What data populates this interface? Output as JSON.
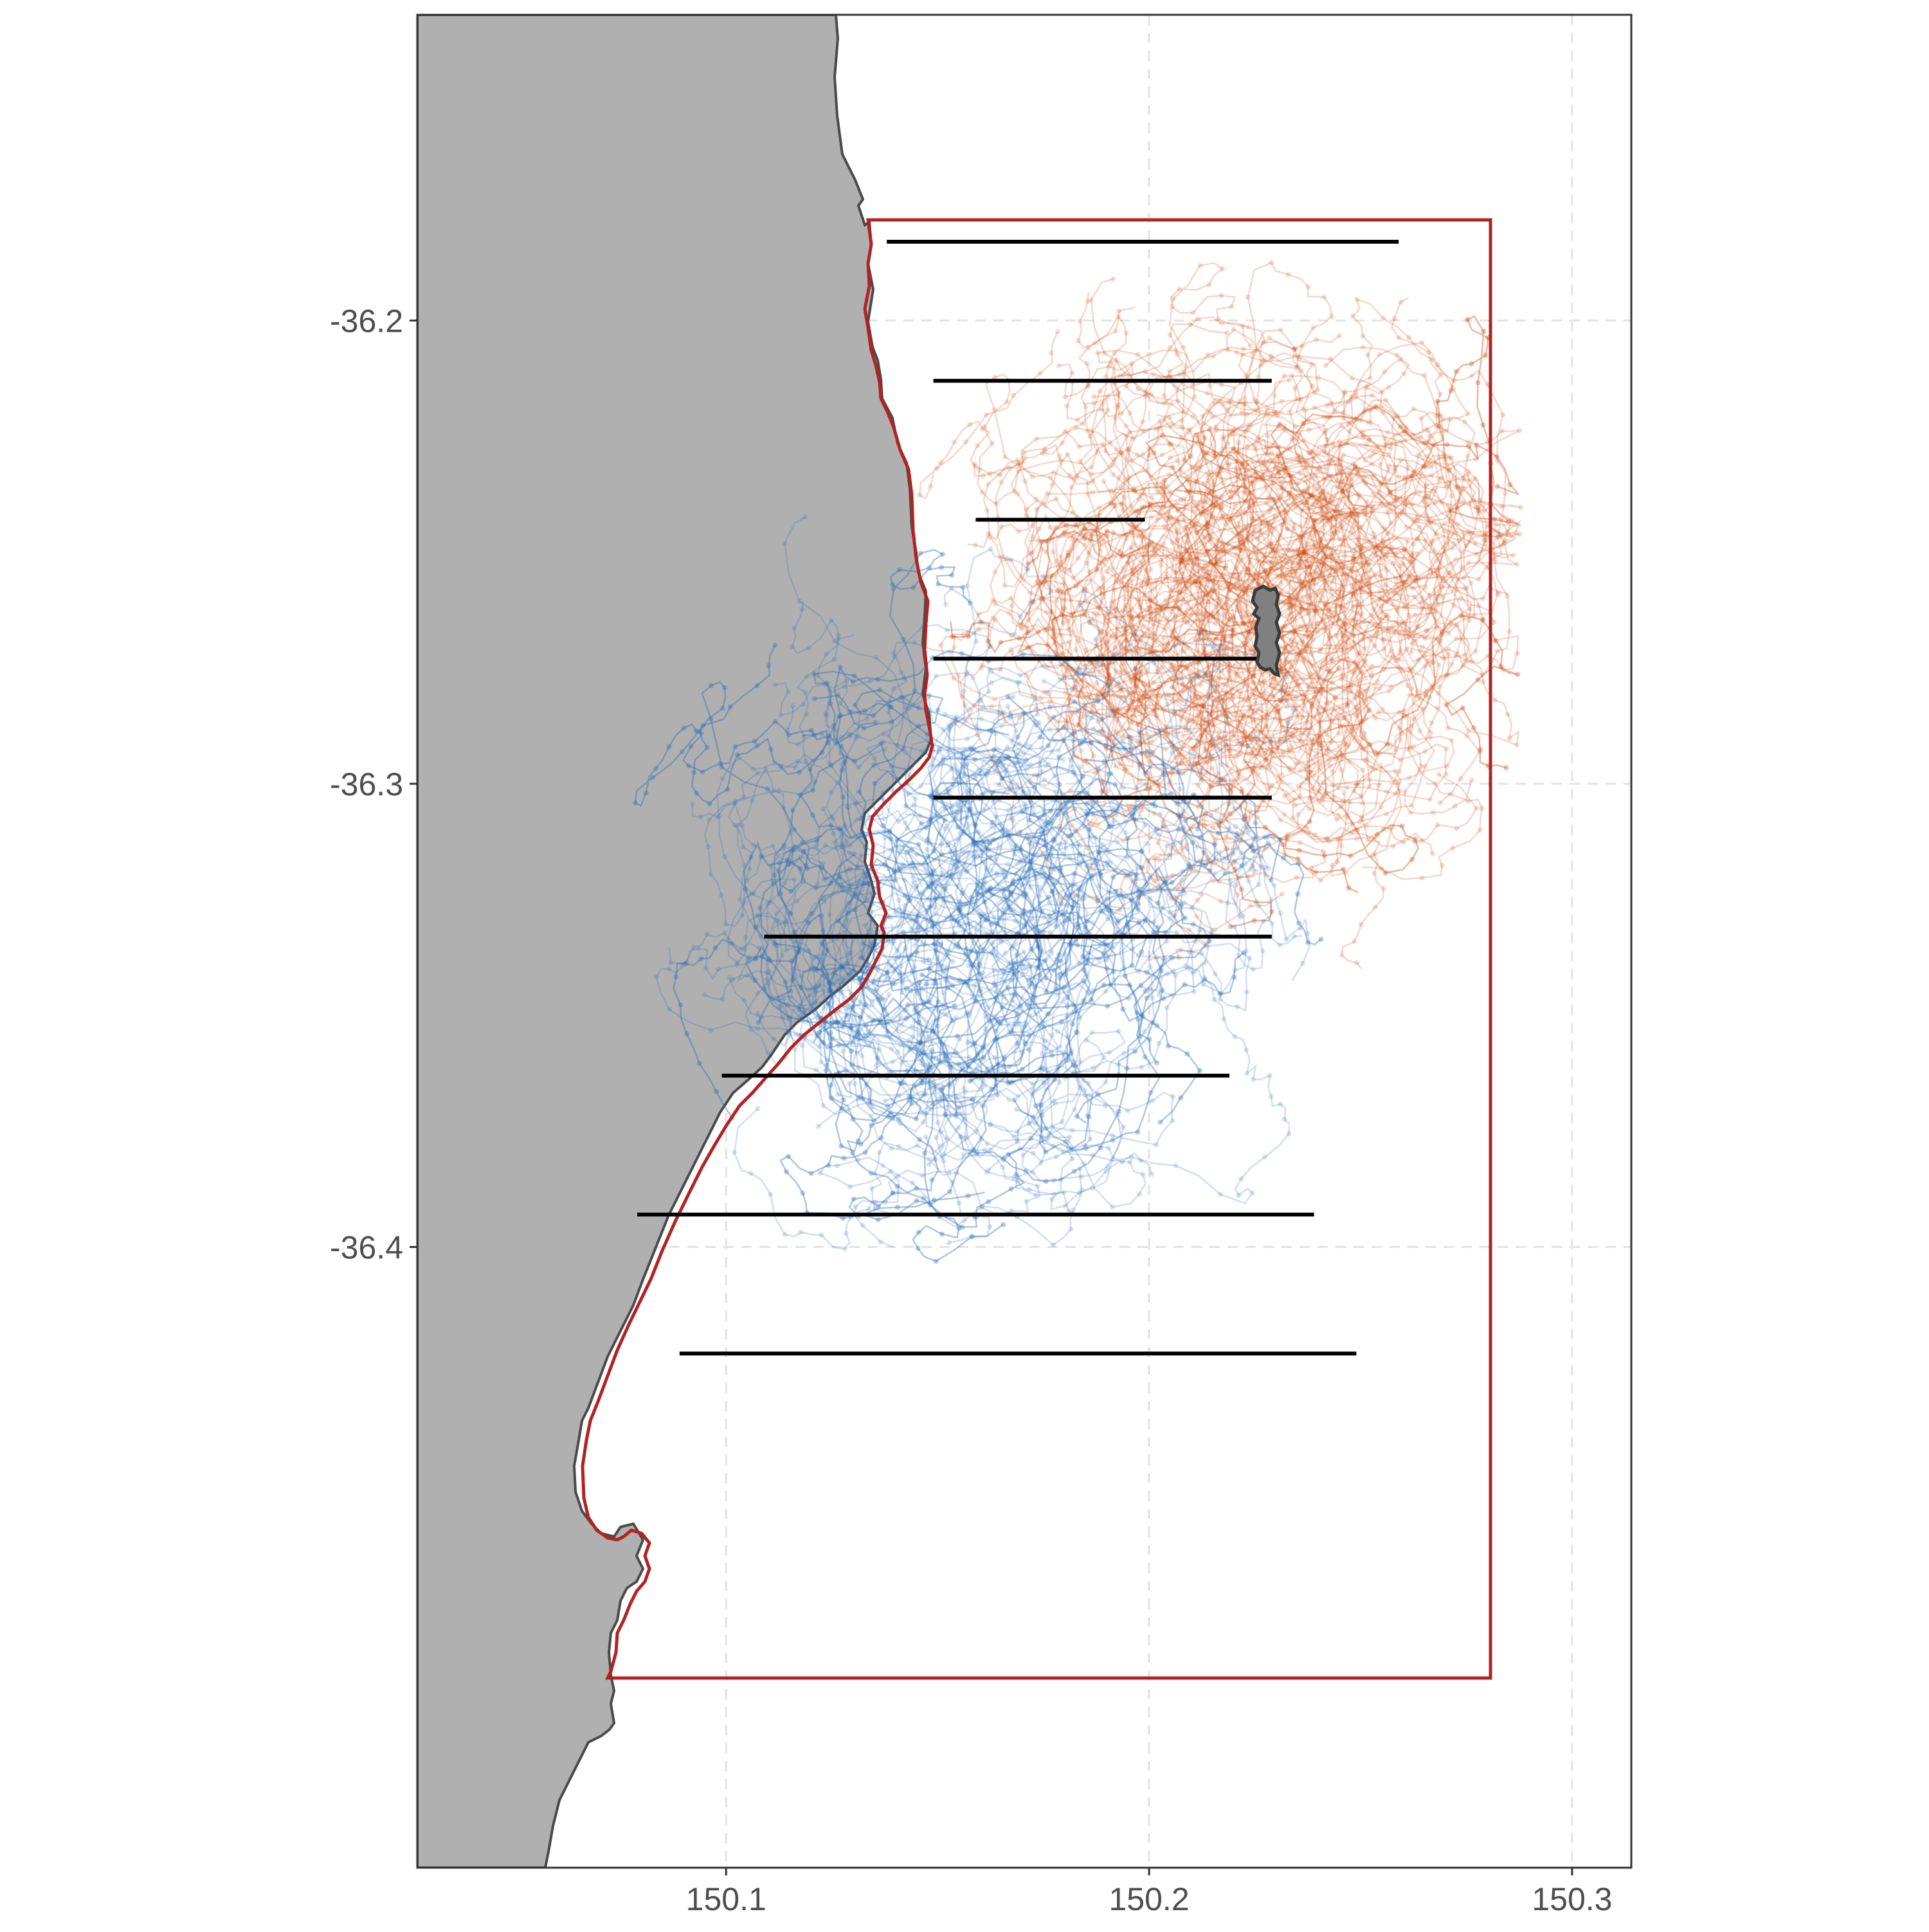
{
  "axes": {
    "x_ticks": [
      {
        "value": 150.1,
        "label": "150.1"
      },
      {
        "value": 150.2,
        "label": "150.2"
      },
      {
        "value": 150.3,
        "label": "150.3"
      }
    ],
    "y_ticks": [
      {
        "value": -36.2,
        "label": "-36.2"
      },
      {
        "value": -36.3,
        "label": "-36.3"
      },
      {
        "value": -36.4,
        "label": "-36.4"
      }
    ],
    "xlim": [
      150.027,
      150.314
    ],
    "ylim": [
      -36.534,
      -36.134
    ],
    "grid": "dashed, light grey"
  },
  "colors": {
    "land": "#b0b0b0",
    "coastline": "#4a4a4a",
    "study_area_border": "#b22222",
    "track_orange": "#cc4a0e",
    "track_blue": "#2f6db5",
    "transect": "#000000",
    "island": "#808080"
  },
  "study_area": {
    "lon_east": 150.278,
    "lat_north": -36.166,
    "lat_south": -36.443
  },
  "island": {
    "center": [
      150.2255,
      -36.2505
    ]
  },
  "transects": [
    {
      "lat": -36.183,
      "lon_start": 150.138,
      "lon_end": 150.259
    },
    {
      "lat": -36.213,
      "lon_start": 150.149,
      "lon_end": 150.229
    },
    {
      "lat": -36.243,
      "lon_start": 150.159,
      "lon_end": 150.199
    },
    {
      "lat": -36.273,
      "lon_start": 150.149,
      "lon_end": 150.229
    },
    {
      "lat": -36.303,
      "lon_start": 150.149,
      "lon_end": 150.229
    },
    {
      "lat": -36.333,
      "lon_start": 150.109,
      "lon_end": 150.229
    },
    {
      "lat": -36.363,
      "lon_start": 150.099,
      "lon_end": 150.219
    },
    {
      "lat": -36.393,
      "lon_start": 150.079,
      "lon_end": 150.239
    },
    {
      "lat": -36.423,
      "lon_start": 150.089,
      "lon_end": 150.249
    }
  ],
  "track_groups": [
    {
      "color_key": "track_orange",
      "center": [
        150.226,
        -36.26
      ],
      "spread": [
        0.025,
        0.035
      ]
    },
    {
      "color_key": "track_blue",
      "center": [
        150.16,
        -36.33
      ],
      "spread": [
        0.03,
        0.045
      ]
    }
  ]
}
